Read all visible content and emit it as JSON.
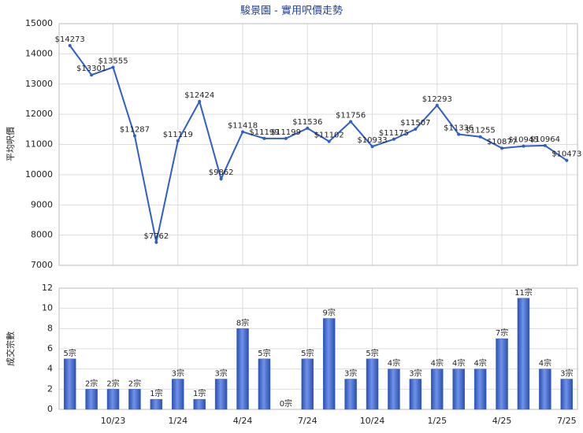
{
  "chart_data": [
    {
      "type": "line",
      "title": "駿景園 - 實用呎價走勢",
      "y_label": "平均呎價",
      "color": "#2f5fc4",
      "categories": [
        null,
        null,
        "10/23",
        null,
        null,
        "1/24",
        null,
        null,
        "4/24",
        null,
        null,
        "7/24",
        null,
        null,
        "10/24",
        null,
        null,
        "1/25",
        null,
        null,
        "4/25",
        null,
        null,
        "7/25"
      ],
      "values": [
        14273,
        13301,
        13555,
        11287,
        7762,
        11119,
        12424,
        9862,
        11418,
        11199,
        11199,
        11536,
        11102,
        11756,
        10933,
        11175,
        11507,
        12293,
        11336,
        11255,
        10877,
        10945,
        10964,
        10473
      ],
      "value_labels": [
        "$14273",
        "$13301",
        "$13555",
        "$11287",
        "$7762",
        "$11119",
        "$12424",
        "$9862",
        "$11418",
        "$11199",
        "$11199",
        "$11536",
        "$11102",
        "$11756",
        "$10933",
        "$11175",
        "$11507",
        "$12293",
        "$11336",
        "$11255",
        "$10877",
        "$10945",
        "$10964",
        "$10473"
      ],
      "ylim": [
        7000,
        15000
      ],
      "yticks": [
        7000,
        8000,
        9000,
        10000,
        11000,
        12000,
        13000,
        14000,
        15000
      ],
      "grid": true
    },
    {
      "type": "bar",
      "y_label": "成交宗數",
      "color": "#3d64c8",
      "categories": [
        null,
        null,
        "10/23",
        null,
        null,
        "1/24",
        null,
        null,
        "4/24",
        null,
        null,
        "7/24",
        null,
        null,
        "10/24",
        null,
        null,
        "1/25",
        null,
        null,
        "4/25",
        null,
        null,
        "7/25"
      ],
      "values": [
        5,
        2,
        2,
        2,
        1,
        3,
        1,
        3,
        8,
        5,
        0,
        5,
        9,
        3,
        5,
        4,
        3,
        4,
        4,
        4,
        7,
        11,
        4,
        3
      ],
      "value_labels": [
        "5宗",
        "2宗",
        "2宗",
        "2宗",
        "1宗",
        "3宗",
        "1宗",
        "3宗",
        "8宗",
        "5宗",
        "0宗",
        "5宗",
        "9宗",
        "3宗",
        "5宗",
        "4宗",
        "3宗",
        "4宗",
        "4宗",
        "4宗",
        "7宗",
        "11宗",
        "4宗",
        "3宗"
      ],
      "ylim": [
        0,
        12
      ],
      "yticks": [
        0,
        2,
        4,
        6,
        8,
        10,
        12
      ],
      "grid": true
    }
  ]
}
